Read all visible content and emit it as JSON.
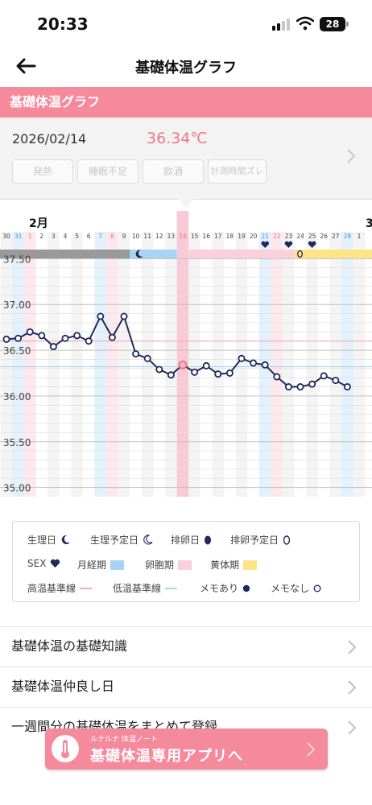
{
  "status_bar": {
    "time": "20:33",
    "battery": "28"
  },
  "nav": {
    "title": "基礎体温グラフ"
  },
  "section_header": {
    "title": "基礎体温グラフ"
  },
  "record": {
    "date": "2026/02/14",
    "temperature": "36.34℃",
    "tags": [
      "発熱",
      "睡眠不足",
      "飲酒",
      "計測時間ズレ"
    ]
  },
  "chart_data": {
    "type": "line",
    "month_label": "2月",
    "next_month_label": "3",
    "days": [
      "30",
      "31",
      "1",
      "2",
      "3",
      "4",
      "5",
      "6",
      "7",
      "8",
      "9",
      "10",
      "11",
      "12",
      "13",
      "14",
      "15",
      "16",
      "17",
      "18",
      "19",
      "20",
      "21",
      "22",
      "23",
      "24",
      "25",
      "26",
      "27",
      "28",
      "1"
    ],
    "y_ticks": [
      "37.50",
      "37.00",
      "36.50",
      "36.00",
      "35.50",
      "35.00"
    ],
    "ylim": [
      34.9,
      37.6
    ],
    "series": [
      {
        "x": [
          "30",
          "31",
          "1",
          "2",
          "3",
          "4",
          "5",
          "6",
          "7",
          "8",
          "9",
          "10",
          "11",
          "12",
          "13",
          "14",
          "15",
          "16",
          "17",
          "18",
          "19",
          "20",
          "21",
          "22",
          "23",
          "24",
          "25",
          "26",
          "27",
          "28"
        ],
        "values": [
          36.62,
          36.63,
          36.7,
          36.66,
          36.54,
          36.63,
          36.66,
          36.6,
          36.87,
          36.64,
          36.87,
          36.46,
          36.41,
          36.29,
          36.23,
          36.34,
          36.26,
          36.33,
          36.24,
          36.25,
          36.41,
          36.36,
          36.34,
          36.21,
          36.1,
          36.1,
          36.13,
          36.22,
          36.17,
          36.1
        ]
      }
    ],
    "selected_day": "14",
    "high_baseline": 36.6,
    "low_baseline": 36.32,
    "grid": true,
    "colors": {
      "line": "#1f2a5c",
      "menstrual": "#a7d3f5",
      "follicular": "#fbd0da",
      "luteal": "#fde587",
      "high_line": "#f7a9b7",
      "low_line": "#a9d5ef",
      "selected": "#f4b8c8",
      "menstrual_period_bar": "#999999"
    },
    "sex_days": [
      "21",
      "23",
      "25"
    ],
    "period_start_day": "10",
    "ovulation_expected_day": "24"
  },
  "legend": {
    "period": "生理日",
    "expected_period": "生理予定日",
    "ovulation": "排卵日",
    "expected_ovulation": "排卵予定日",
    "sex": "SEX",
    "menstrual_phase": "月経期",
    "follicular_phase": "卵胞期",
    "luteal_phase": "黄体期",
    "high_line": "高温基準線",
    "low_line": "低温基準線",
    "memo_yes": "メモあり",
    "memo_no": "メモなし"
  },
  "list": [
    {
      "label": "基礎体温の基礎知識"
    },
    {
      "label": "基礎体温仲良し日"
    },
    {
      "label": "一週間分の基礎体温をまとめて登録"
    }
  ],
  "banner": {
    "small": "ルナルナ 体温ノート",
    "main": "基礎体温専用アプリへ"
  }
}
